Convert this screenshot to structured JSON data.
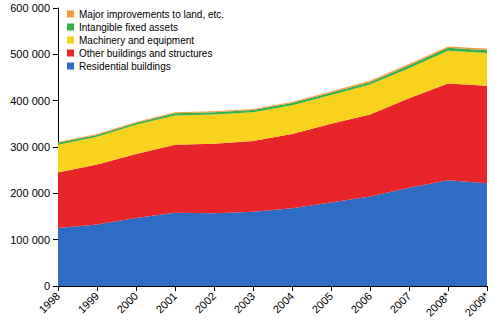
{
  "chart_data": {
    "type": "area",
    "stacked": true,
    "grid": false,
    "legend": "upper left",
    "categories": [
      "1998",
      "1999",
      "2000",
      "2001",
      "2002",
      "2003",
      "2004",
      "2005",
      "2006",
      "2007",
      "2008*",
      "2009*"
    ],
    "series": [
      {
        "name": "Residential buildings",
        "color": "#2f6dc4",
        "values": [
          125000,
          133000,
          147000,
          158000,
          157000,
          160000,
          168000,
          180000,
          193000,
          212000,
          228000,
          222000
        ]
      },
      {
        "name": "Other buildings and structures",
        "color": "#e8262a",
        "values": [
          120000,
          129000,
          138000,
          147000,
          150000,
          153000,
          160000,
          170000,
          177000,
          193000,
          209000,
          210000
        ]
      },
      {
        "name": "Machinery and equipment",
        "color": "#f7d31e",
        "values": [
          60000,
          60000,
          63000,
          63000,
          63000,
          62000,
          62000,
          62000,
          65000,
          65000,
          71000,
          71000
        ]
      },
      {
        "name": "Intangible fixed assets",
        "color": "#33b24a",
        "values": [
          4000,
          4000,
          4000,
          5000,
          5000,
          5000,
          5000,
          5000,
          5000,
          6000,
          6000,
          6000
        ]
      },
      {
        "name": "Major improvements to land, etc.",
        "color": "#f59a3c",
        "values": [
          2000,
          2000,
          2000,
          2000,
          2000,
          2000,
          2000,
          3000,
          3000,
          3000,
          3000,
          3000
        ]
      }
    ],
    "ylim": [
      0,
      600000
    ],
    "yticks": [
      0,
      {
        "value": 100000,
        "label": "100 000"
      },
      {
        "value": 200000,
        "label": "200 000"
      },
      {
        "value": 300000,
        "label": "300 000"
      },
      {
        "value": 400000,
        "label": "400 000"
      },
      {
        "value": 500000,
        "label": "500 000"
      },
      {
        "value": 600000,
        "label": "600 000"
      }
    ]
  }
}
